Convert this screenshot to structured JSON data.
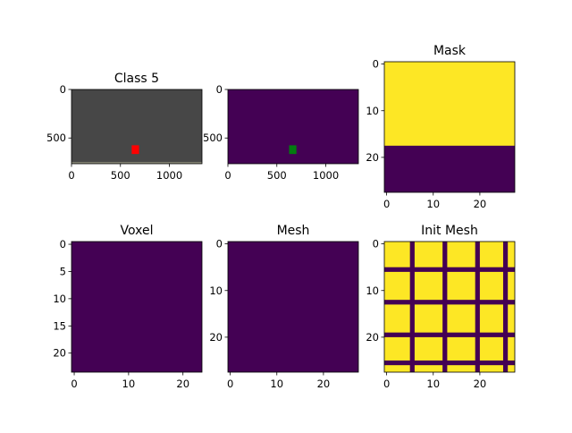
{
  "chart_data": [
    {
      "type": "heatmap",
      "id": "class5",
      "title": "Class 5",
      "xlim": [
        0,
        1333
      ],
      "ylim": [
        765,
        0
      ],
      "xticks": [
        0,
        500,
        1000
      ],
      "yticks": [
        0,
        500
      ],
      "background": "#474747",
      "border_line_y": 755,
      "border_line_color": "#8a8a78",
      "regions": [
        {
          "name": "box",
          "x": [
            615,
            690
          ],
          "y": [
            575,
            665
          ],
          "color": "#ff0000"
        }
      ]
    },
    {
      "type": "heatmap",
      "id": "class-mask",
      "title": "",
      "xlim": [
        0,
        1333
      ],
      "ylim": [
        765,
        0
      ],
      "xticks": [
        0,
        500,
        1000
      ],
      "yticks": [
        0,
        500
      ],
      "background": "#440154",
      "regions": [
        {
          "name": "box",
          "x": [
            625,
            700
          ],
          "y": [
            575,
            665
          ],
          "color": "#037c10"
        }
      ]
    },
    {
      "type": "heatmap",
      "id": "mask",
      "title": "Mask",
      "xlim": [
        -0.5,
        27.5
      ],
      "ylim": [
        27.5,
        -0.5
      ],
      "xticks": [
        0,
        10,
        20
      ],
      "yticks": [
        0,
        10,
        20
      ],
      "background": "#440154",
      "regions": [
        {
          "name": "filled",
          "x": [
            -0.5,
            27.5
          ],
          "y": [
            -0.5,
            17.5
          ],
          "color": "#fde725"
        }
      ]
    },
    {
      "type": "heatmap",
      "id": "voxel",
      "title": "Voxel",
      "xlim": [
        -0.5,
        23.5
      ],
      "ylim": [
        23.5,
        -0.5
      ],
      "xticks": [
        0,
        10,
        20
      ],
      "yticks": [
        0,
        5,
        10,
        15,
        20
      ],
      "background": "#440154",
      "regions": []
    },
    {
      "type": "heatmap",
      "id": "mesh",
      "title": "Mesh",
      "xlim": [
        -0.5,
        27.5
      ],
      "ylim": [
        27.5,
        -0.5
      ],
      "xticks": [
        0,
        10,
        20
      ],
      "yticks": [
        0,
        10,
        20
      ],
      "background": "#440154",
      "regions": []
    },
    {
      "type": "heatmap",
      "id": "init-mesh",
      "title": "Init Mesh",
      "xlim": [
        -0.5,
        27.5
      ],
      "ylim": [
        27.5,
        -0.5
      ],
      "xticks": [
        0,
        10,
        20
      ],
      "yticks": [
        0,
        10,
        20
      ],
      "background": "#fde725",
      "line_color": "#440154",
      "vertical_lines": [
        5.5,
        12.5,
        19.5,
        25.5
      ],
      "horizontal_lines": [
        5.5,
        12.5,
        19.5,
        25.5
      ],
      "line_width": 1
    }
  ]
}
